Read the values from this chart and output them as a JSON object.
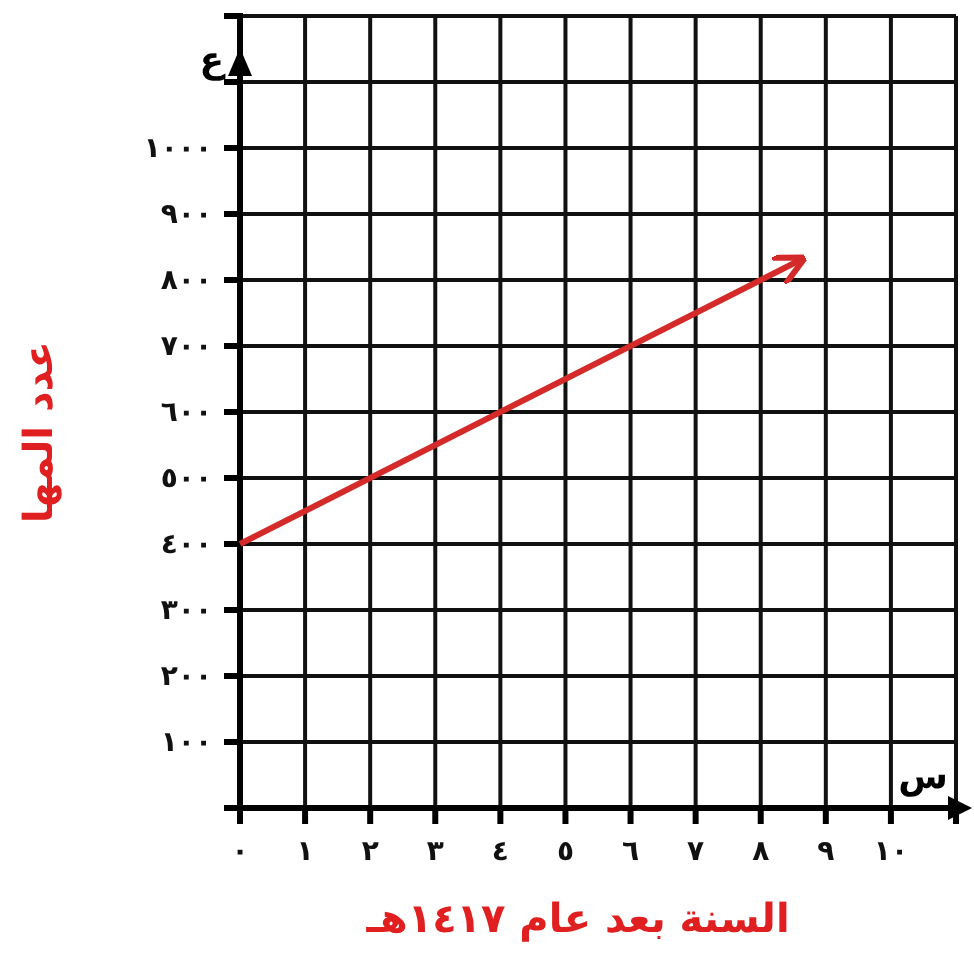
{
  "chart_data": {
    "type": "line",
    "xlabel": "السنة بعد عام ١٤١٧هـ",
    "ylabel": "عدد المها",
    "x": [
      0,
      8.6
    ],
    "series": [
      {
        "color": "#d42a2a",
        "values": [
          400,
          830
        ]
      }
    ],
    "marker": "none",
    "line_style": "solid",
    "grid": true,
    "xlim": [
      0,
      11
    ],
    "ylim": [
      0,
      1200
    ],
    "xticks": [
      {
        "value": 0,
        "label": "٠"
      },
      {
        "value": 1,
        "label": "١"
      },
      {
        "value": 2,
        "label": "٢"
      },
      {
        "value": 3,
        "label": "٣"
      },
      {
        "value": 4,
        "label": "٤"
      },
      {
        "value": 5,
        "label": "٥"
      },
      {
        "value": 6,
        "label": "٦"
      },
      {
        "value": 7,
        "label": "٧"
      },
      {
        "value": 8,
        "label": "٨"
      },
      {
        "value": 9,
        "label": "٩"
      },
      {
        "value": 10,
        "label": "١٠"
      },
      {
        "value": 11,
        "label": null
      }
    ],
    "yticks": [
      {
        "value": 0,
        "label": null
      },
      {
        "value": 100,
        "label": "١٠٠"
      },
      {
        "value": 200,
        "label": "٢٠٠"
      },
      {
        "value": 300,
        "label": "٣٠٠"
      },
      {
        "value": 400,
        "label": "٤٠٠"
      },
      {
        "value": 500,
        "label": "٥٠٠"
      },
      {
        "value": 600,
        "label": "٦٠٠"
      },
      {
        "value": 700,
        "label": "٧٠٠"
      },
      {
        "value": 800,
        "label": "٨٠٠"
      },
      {
        "value": 900,
        "label": "٩٠٠"
      },
      {
        "value": 1000,
        "label": "١٠٠٠"
      },
      {
        "value": 1100,
        "label": null
      },
      {
        "value": 1200,
        "label": null
      }
    ],
    "annotations": [
      "ع",
      "س"
    ]
  }
}
